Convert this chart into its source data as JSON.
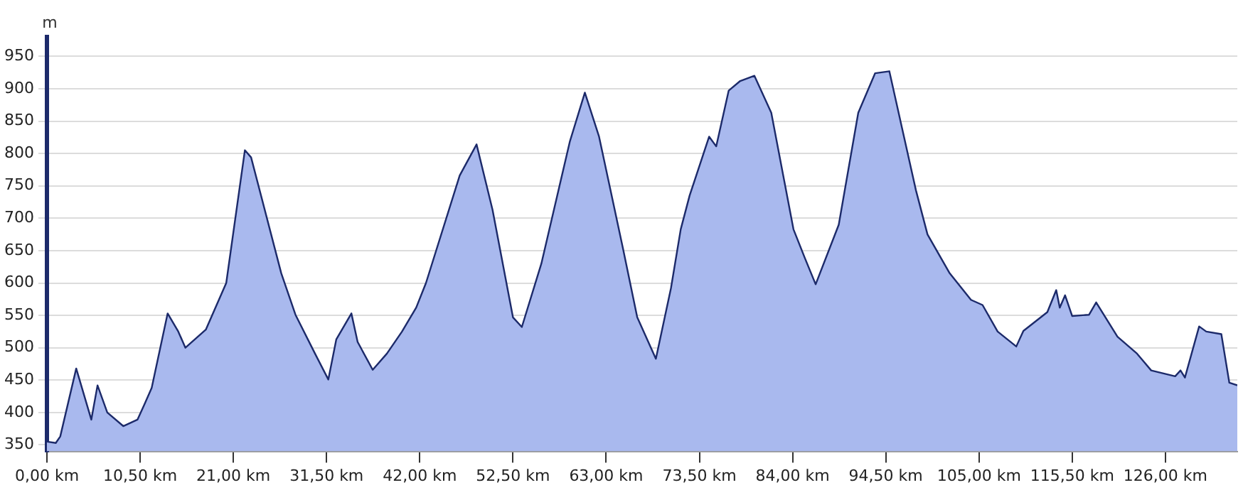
{
  "chart_data": {
    "type": "area",
    "ylabel": "m",
    "legend": false,
    "grid": "y",
    "xlim": [
      0,
      134.1
    ],
    "ylim": [
      340,
      980
    ],
    "xticks": [
      {
        "value": 0,
        "label": "0,00 km"
      },
      {
        "value": 10.5,
        "label": "10,50 km"
      },
      {
        "value": 21,
        "label": "21,00 km"
      },
      {
        "value": 31.5,
        "label": "31,50 km"
      },
      {
        "value": 42,
        "label": "42,00 km"
      },
      {
        "value": 52.5,
        "label": "52,50 km"
      },
      {
        "value": 63,
        "label": "63,00 km"
      },
      {
        "value": 73.5,
        "label": "73,50 km"
      },
      {
        "value": 84,
        "label": "84,00 km"
      },
      {
        "value": 94.5,
        "label": "94,50 km"
      },
      {
        "value": 105,
        "label": "105,00 km"
      },
      {
        "value": 115.5,
        "label": "115,50 km"
      },
      {
        "value": 126,
        "label": "126,00 km"
      }
    ],
    "yticks": [
      350,
      400,
      450,
      500,
      550,
      600,
      650,
      700,
      750,
      800,
      850,
      900,
      950
    ],
    "series": [
      {
        "color": "#a9b9ee",
        "x": [
          0,
          1.0,
          1.5,
          3.3,
          5.0,
          5.7,
          6.8,
          8.6,
          10.2,
          11.0,
          11.8,
          13.6,
          14.8,
          15.6,
          17.9,
          20.2,
          22.3,
          23.0,
          26.4,
          28.0,
          30.2,
          31.7,
          32.6,
          34.3,
          35.0,
          36.7,
          38.3,
          40.0,
          41.6,
          42.7,
          46.5,
          48.4,
          50.2,
          52.5,
          53.5,
          55.7,
          58.9,
          60.6,
          62.2,
          64.9,
          66.5,
          68.6,
          70.3,
          71.4,
          72.4,
          74.6,
          75.4,
          76.8,
          78.1,
          79.7,
          81.6,
          84.1,
          85.4,
          86.6,
          89.2,
          91.4,
          93.3,
          94.9,
          97.9,
          99.2,
          101.7,
          104.1,
          105.4,
          107.1,
          109.2,
          110.0,
          112.7,
          113.7,
          114.1,
          114.7,
          115.5,
          117.4,
          118.2,
          120.6,
          122.8,
          124.4,
          127.1,
          127.7,
          128.2,
          129.8,
          130.6,
          132.3,
          133.2,
          134.1
        ],
        "values": [
          355,
          353,
          363,
          468,
          389,
          442,
          400,
          379,
          389,
          413,
          438,
          553,
          525,
          500,
          528,
          600,
          805,
          794,
          615,
          551,
          491,
          451,
          513,
          553,
          509,
          466,
          491,
          525,
          562,
          600,
          766,
          814,
          713,
          547,
          532,
          630,
          818,
          894,
          826,
          653,
          547,
          483,
          592,
          683,
          735,
          826,
          811,
          897,
          912,
          920,
          863,
          683,
          638,
          598,
          690,
          863,
          924,
          927,
          743,
          675,
          615,
          574,
          566,
          525,
          502,
          526,
          555,
          589,
          562,
          581,
          549,
          551,
          570,
          517,
          491,
          465,
          456,
          465,
          454,
          533,
          525,
          521,
          446,
          442
        ]
      }
    ]
  }
}
